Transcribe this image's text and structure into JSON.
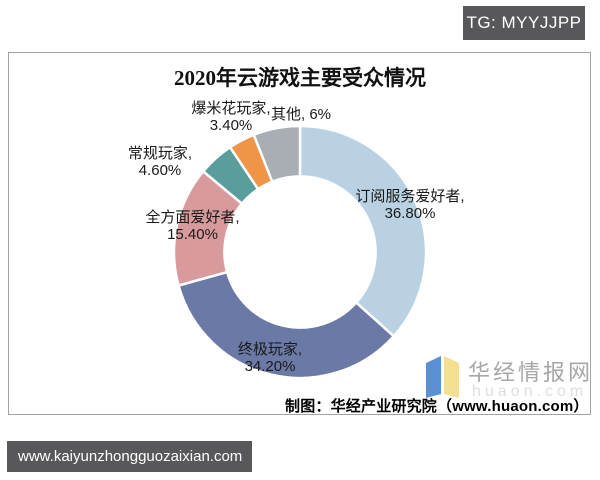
{
  "top_bar": {
    "badge_label": "TG: MYYJJPP"
  },
  "bottom_bar": {
    "url_label": "www.kaiyunzhongguozaixian.com"
  },
  "watermark": {
    "site_name": "华经情报网",
    "site_url": "huaon.com"
  },
  "chart_data": {
    "type": "pie",
    "subtype": "donut",
    "title": "2020年云游戏主要受众情况",
    "legend_position": "none",
    "labels_on_chart": true,
    "inner_radius_ratio": 0.6,
    "start_angle_deg": 0,
    "direction": "clockwise",
    "segments": [
      {
        "name": "订阅服务爱好者",
        "value": 36.8,
        "pct_display": "36.80%",
        "color": "#b9d1e2",
        "two_line": true
      },
      {
        "name": "终极玩家",
        "value": 34.2,
        "pct_display": "34.20%",
        "color": "#6b79a6",
        "two_line": true
      },
      {
        "name": "全方面爱好者",
        "value": 15.4,
        "pct_display": "15.40%",
        "color": "#d89a9c",
        "two_line": true
      },
      {
        "name": "常规玩家",
        "value": 4.6,
        "pct_display": "4.60%",
        "color": "#5a9d9d",
        "two_line": true
      },
      {
        "name": "爆米花玩家",
        "value": 3.4,
        "pct_display": "3.40%",
        "color": "#ee9549",
        "two_line": true
      },
      {
        "name": "其他",
        "value": 6.0,
        "pct_display": "6%",
        "color": "#a8aeb4",
        "two_line": false
      }
    ],
    "source_note": "制图：华经产业研究院（www.huaon.com）"
  }
}
